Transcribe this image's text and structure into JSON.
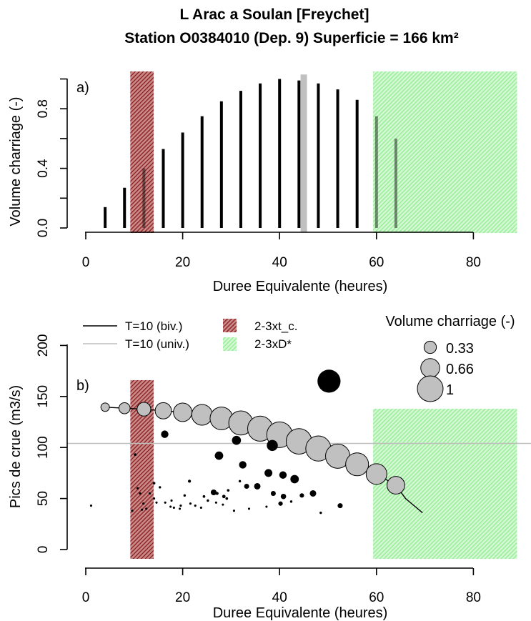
{
  "title": {
    "line1": "L Arac a Soulan [Freychet]",
    "line2": "Station O0384010 (Dep. 9) Superficie = 166 km²"
  },
  "chart_data": [
    {
      "panel": "a)",
      "type": "bar",
      "xlabel": "Duree Equivalente (heures)",
      "ylabel": "Volume charriage (-)",
      "xlim": [
        0,
        90
      ],
      "ylim": [
        0,
        1.0
      ],
      "xticks": [
        "0",
        "20",
        "40",
        "60",
        "80"
      ],
      "yticks": [
        "0.0",
        "0.4",
        "0.8"
      ],
      "bars": {
        "x": [
          4,
          8,
          12,
          16,
          20,
          24,
          28,
          32,
          36,
          40,
          44,
          48,
          52,
          56,
          60,
          64
        ],
        "values": [
          0.14,
          0.27,
          0.4,
          0.53,
          0.64,
          0.75,
          0.85,
          0.92,
          0.97,
          1.0,
          0.99,
          0.97,
          0.93,
          0.86,
          0.75,
          0.6
        ],
        "color": "#000000"
      },
      "highlight_bar": {
        "x": 45,
        "value": 1.03,
        "color": "#c0c0c0"
      },
      "bands": [
        {
          "name": "2-3xt_c.",
          "x": [
            9.2,
            14
          ],
          "color": "#8b1a1a"
        },
        {
          "name": "2-3xD*",
          "x": [
            59.3,
            89
          ],
          "color": "#90ee90"
        }
      ]
    },
    {
      "panel": "b)",
      "type": "scatter",
      "xlabel": "Duree Equivalente (heures)",
      "ylabel": "Pics de crue (m3/s)",
      "xlim": [
        0,
        90
      ],
      "ylim": [
        0,
        200
      ],
      "xticks": [
        "0",
        "20",
        "40",
        "60",
        "80"
      ],
      "yticks": [
        "0",
        "50",
        "100",
        "150",
        "200"
      ],
      "hline": {
        "name": "T=10 (univ.)",
        "y": 104,
        "color": "#bebebe"
      },
      "curve": {
        "name": "T=10 (biv.)",
        "x": [
          4,
          8,
          12,
          16,
          20,
          24,
          28,
          32,
          36,
          40,
          44,
          48,
          52,
          56,
          60,
          64,
          66,
          68,
          69.5
        ],
        "y": [
          139.5,
          138.5,
          137.5,
          136,
          134.5,
          132,
          128.5,
          124,
          118.5,
          112.5,
          106,
          99,
          91.5,
          83.5,
          74,
          63,
          50,
          42,
          36
        ]
      },
      "curve_points": {
        "x": [
          4,
          8,
          12,
          16,
          20,
          24,
          28,
          32,
          36,
          40,
          44,
          48,
          52,
          56,
          60,
          64
        ],
        "y": [
          139.5,
          138.5,
          137.5,
          136,
          134.5,
          132,
          128.5,
          124,
          118.5,
          112.5,
          106,
          99,
          91.5,
          83.5,
          74,
          63
        ],
        "volume": [
          0.14,
          0.27,
          0.4,
          0.53,
          0.64,
          0.75,
          0.85,
          0.92,
          0.97,
          1.0,
          0.99,
          0.97,
          0.93,
          0.86,
          0.75,
          0.6
        ],
        "color": "#c0c0c0"
      },
      "observed_points": {
        "color": "#000000",
        "points": [
          [
            50.2,
            165,
            1.08
          ],
          [
            16.3,
            113,
            0.3
          ],
          [
            31.1,
            107,
            0.38
          ],
          [
            38.5,
            102,
            0.48
          ],
          [
            27.5,
            92,
            0.35
          ],
          [
            10.2,
            93,
            0.06
          ],
          [
            32.4,
            83,
            0.3
          ],
          [
            37.7,
            75,
            0.32
          ],
          [
            40.7,
            73,
            0.3
          ],
          [
            43.1,
            69,
            0.35
          ],
          [
            31.8,
            67,
            0.05
          ],
          [
            21.4,
            67,
            0.08
          ],
          [
            35.4,
            62,
            0.25
          ],
          [
            33.2,
            62,
            0.18
          ],
          [
            29.4,
            58,
            0.06
          ],
          [
            14.1,
            65,
            0.06
          ],
          [
            15.3,
            61,
            0.05
          ],
          [
            26.4,
            56,
            0.22
          ],
          [
            38.7,
            55,
            0.18
          ],
          [
            40.8,
            52,
            0.2
          ],
          [
            46.9,
            55,
            0.25
          ],
          [
            42.4,
            47,
            0.05
          ],
          [
            40.2,
            45,
            0.15
          ],
          [
            52.5,
            43,
            0.18
          ],
          [
            48.5,
            36,
            0.05
          ],
          [
            44.6,
            53,
            0.15
          ],
          [
            28.5,
            52,
            0.1
          ],
          [
            24.4,
            52,
            0.06
          ],
          [
            27.1,
            55,
            0.08
          ],
          [
            29.1,
            50,
            0.06
          ],
          [
            25.2,
            48,
            0.05
          ],
          [
            20.4,
            53,
            0.05
          ],
          [
            17.7,
            48,
            0.04
          ],
          [
            16.4,
            46,
            0.04
          ],
          [
            14.1,
            50,
            0.04
          ],
          [
            19.6,
            43,
            0.04
          ],
          [
            21.6,
            45,
            0.04
          ],
          [
            23.8,
            41,
            0.04
          ],
          [
            26.9,
            46,
            0.04
          ],
          [
            28.3,
            44,
            0.04
          ],
          [
            33.7,
            40,
            0.04
          ],
          [
            30.6,
            38,
            0.04
          ],
          [
            37.3,
            42,
            0.04
          ],
          [
            17.5,
            42,
            0.04
          ],
          [
            11.2,
            55,
            0.04
          ],
          [
            10.7,
            60,
            0.04
          ],
          [
            13.2,
            55,
            0.04
          ],
          [
            11.9,
            45,
            0.04
          ],
          [
            9.6,
            38,
            0.04
          ],
          [
            11.6,
            39,
            0.04
          ],
          [
            12.5,
            40,
            0.04
          ],
          [
            18.2,
            41,
            0.04
          ],
          [
            19.4,
            40,
            0.04
          ],
          [
            22.6,
            43,
            0.04
          ],
          [
            14.6,
            46,
            0.04
          ],
          [
            1.1,
            43,
            0.04
          ]
        ]
      },
      "bands": [
        {
          "name": "2-3xt_c.",
          "x": [
            9.2,
            14
          ],
          "y": [
            0,
            166
          ],
          "color": "#8b1a1a"
        },
        {
          "name": "2-3xD*",
          "x": [
            59.3,
            89
          ],
          "y": [
            0,
            138
          ],
          "color": "#90ee90"
        }
      ],
      "legend": {
        "placement": "top",
        "items": [
          {
            "label": "T=10 (biv.)",
            "kind": "line",
            "color": "#000000"
          },
          {
            "label": "2-3xt_c.",
            "kind": "band",
            "color": "#8b1a1a"
          },
          {
            "label": "T=10 (univ.)",
            "kind": "line",
            "color": "#bebebe"
          },
          {
            "label": "2-3xD*",
            "kind": "band",
            "color": "#90ee90"
          }
        ]
      },
      "size_legend": {
        "title": "Volume charriage (-)",
        "placement": "top-right",
        "values": [
          0.33,
          0.66,
          1
        ],
        "labels": [
          "0.33",
          "0.66",
          "1"
        ]
      }
    }
  ]
}
